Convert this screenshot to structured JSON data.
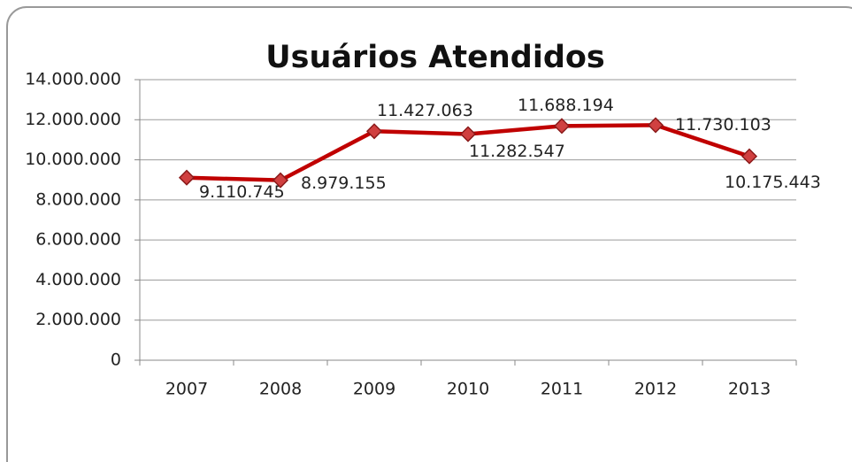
{
  "chart_data": {
    "type": "line",
    "title": "Usuários   Atendidos",
    "categories": [
      "2007",
      "2008",
      "2009",
      "2010",
      "2011",
      "2012",
      "2013"
    ],
    "series": [
      {
        "name": "Usuários Atendidos",
        "color": "#c00000",
        "values": [
          9110745,
          8979155,
          11427063,
          11282547,
          11688194,
          11730103,
          10175443
        ],
        "value_labels": [
          "9.110.745",
          "8.979.155",
          "11.427.063",
          "11.282.547",
          "11.688.194",
          "11.730.103",
          "10.175.443"
        ]
      }
    ],
    "ylim": [
      0,
      14000000
    ],
    "yticks": [
      0,
      {
        "value": 2000000,
        "label": "2.000.000"
      },
      {
        "value": 4000000,
        "label": "4.000.000"
      },
      {
        "value": 6000000,
        "label": "6.000.000"
      },
      {
        "value": 8000000,
        "label": "8.000.000"
      },
      {
        "value": 10000000,
        "label": "10.000.000"
      },
      {
        "value": 12000000,
        "label": "12.000.000"
      },
      {
        "value": 14000000,
        "label": "14.000.000"
      }
    ],
    "grid": true
  }
}
